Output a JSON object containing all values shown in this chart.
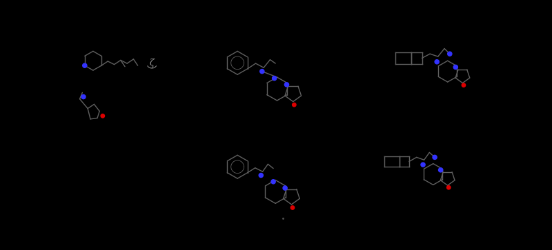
{
  "background_color": "#000000",
  "fig_width": 8.0,
  "fig_height": 3.63,
  "dpi": 100,
  "structure_color": "#606060",
  "nitrogen_color": "#3333ff",
  "oxygen_color": "#dd0000",
  "lw": 1.0
}
